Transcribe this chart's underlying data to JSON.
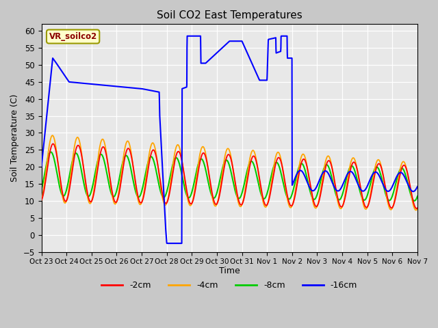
{
  "title": "Soil CO2 East Temperatures",
  "ylabel": "Soil Temperature (C)",
  "xlabel": "Time",
  "annotation_text": "VR_soilco2",
  "ylim": [
    -5,
    62
  ],
  "xlim": [
    0,
    15
  ],
  "legend_labels": [
    "-2cm",
    "-4cm",
    "-8cm",
    "-16cm"
  ],
  "legend_colors": [
    "#ff0000",
    "#ffa500",
    "#00cc00",
    "#0000ff"
  ],
  "fig_bg": "#c8c8c8",
  "plot_bg": "#e8e8e8",
  "x_tick_labels": [
    "Oct 23",
    "Oct 24",
    "Oct 25",
    "Oct 26",
    "Oct 27",
    "Oct 28",
    "Oct 29",
    "Oct 30",
    "Oct 31",
    "Nov 1",
    "Nov 2",
    "Nov 3",
    "Nov 4",
    "Nov 5",
    "Nov 6",
    "Nov 7"
  ],
  "blue_keypoints_x": [
    0.0,
    0.45,
    0.55,
    1.1,
    4.0,
    4.7,
    4.72,
    4.95,
    5.0,
    5.6,
    5.61,
    5.8,
    5.81,
    6.35,
    6.36,
    6.55,
    7.5,
    8.0,
    8.7,
    9.0,
    9.05,
    9.35,
    9.36,
    9.55,
    9.56,
    9.8,
    9.81,
    10.0,
    15.0
  ],
  "blue_keypoints_y": [
    20.0,
    52.0,
    51.0,
    45.0,
    43.0,
    42.0,
    35.0,
    2.5,
    -2.5,
    -2.5,
    43.0,
    43.5,
    58.5,
    58.5,
    50.5,
    50.5,
    57.0,
    57.0,
    45.5,
    45.5,
    57.5,
    58.0,
    53.5,
    54.0,
    58.5,
    58.5,
    52.0,
    52.0,
    20.0
  ]
}
